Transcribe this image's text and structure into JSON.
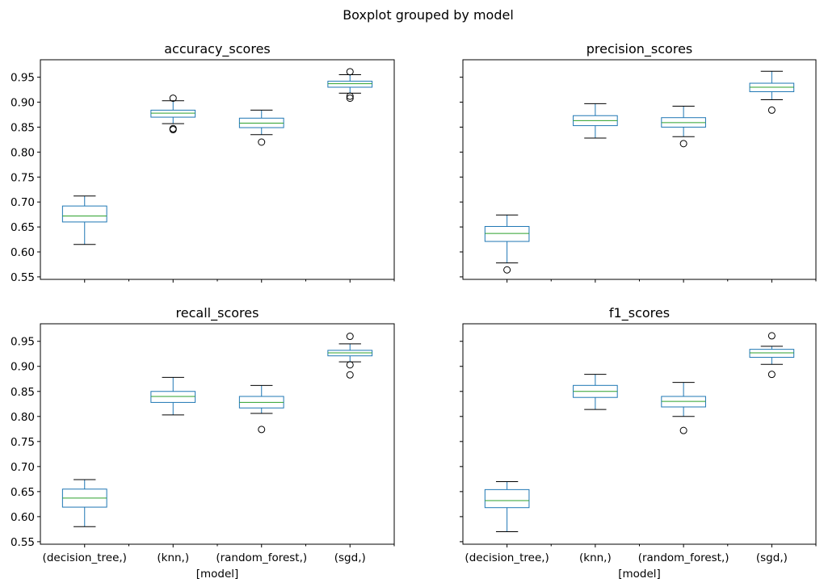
{
  "suptitle": "Boxplot grouped by model",
  "xlabel": "[model]",
  "categories": [
    "(decision_tree,)",
    "(knn,)",
    "(random_forest,)",
    "(sgd,)"
  ],
  "ylim": [
    0.545,
    0.985
  ],
  "yticks": [
    0.55,
    0.6,
    0.65,
    0.7,
    0.75,
    0.8,
    0.85,
    0.9,
    0.95
  ],
  "ytick_labels": [
    "0.55",
    "0.60",
    "0.65",
    "0.70",
    "0.75",
    "0.80",
    "0.85",
    "0.90",
    "0.95"
  ],
  "colors": {
    "box": "#1f77b4",
    "median": "#2ca02c",
    "whisker": "#1f77b4",
    "cap": "#000000",
    "flier": "#000000"
  },
  "chart_data": [
    {
      "type": "boxplot",
      "title": "accuracy_scores",
      "boxes": [
        {
          "category": "(decision_tree,)",
          "whislo": 0.615,
          "q1": 0.66,
          "med": 0.672,
          "q3": 0.692,
          "whishi": 0.712,
          "fliers": []
        },
        {
          "category": "(knn,)",
          "whislo": 0.857,
          "q1": 0.87,
          "med": 0.878,
          "q3": 0.884,
          "whishi": 0.903,
          "fliers": [
            0.847,
            0.845,
            0.908
          ]
        },
        {
          "category": "(random_forest,)",
          "whislo": 0.835,
          "q1": 0.849,
          "med": 0.858,
          "q3": 0.868,
          "whishi": 0.884,
          "fliers": [
            0.82
          ]
        },
        {
          "category": "(sgd,)",
          "whislo": 0.918,
          "q1": 0.93,
          "med": 0.937,
          "q3": 0.942,
          "whishi": 0.955,
          "fliers": [
            0.961,
            0.912,
            0.908
          ]
        }
      ]
    },
    {
      "type": "boxplot",
      "title": "precision_scores",
      "boxes": [
        {
          "category": "(decision_tree,)",
          "whislo": 0.578,
          "q1": 0.621,
          "med": 0.637,
          "q3": 0.651,
          "whishi": 0.674,
          "fliers": [
            0.564
          ]
        },
        {
          "category": "(knn,)",
          "whislo": 0.828,
          "q1": 0.853,
          "med": 0.863,
          "q3": 0.873,
          "whishi": 0.897,
          "fliers": []
        },
        {
          "category": "(random_forest,)",
          "whislo": 0.831,
          "q1": 0.85,
          "med": 0.859,
          "q3": 0.869,
          "whishi": 0.892,
          "fliers": [
            0.817
          ]
        },
        {
          "category": "(sgd,)",
          "whislo": 0.905,
          "q1": 0.921,
          "med": 0.93,
          "q3": 0.938,
          "whishi": 0.962,
          "fliers": [
            0.884
          ]
        }
      ]
    },
    {
      "type": "boxplot",
      "title": "recall_scores",
      "boxes": [
        {
          "category": "(decision_tree,)",
          "whislo": 0.58,
          "q1": 0.619,
          "med": 0.637,
          "q3": 0.655,
          "whishi": 0.674,
          "fliers": []
        },
        {
          "category": "(knn,)",
          "whislo": 0.803,
          "q1": 0.828,
          "med": 0.84,
          "q3": 0.85,
          "whishi": 0.878,
          "fliers": []
        },
        {
          "category": "(random_forest,)",
          "whislo": 0.806,
          "q1": 0.817,
          "med": 0.828,
          "q3": 0.84,
          "whishi": 0.862,
          "fliers": [
            0.774
          ]
        },
        {
          "category": "(sgd,)",
          "whislo": 0.909,
          "q1": 0.921,
          "med": 0.927,
          "q3": 0.932,
          "whishi": 0.945,
          "fliers": [
            0.96,
            0.903,
            0.883
          ]
        }
      ]
    },
    {
      "type": "boxplot",
      "title": "f1_scores",
      "boxes": [
        {
          "category": "(decision_tree,)",
          "whislo": 0.57,
          "q1": 0.618,
          "med": 0.632,
          "q3": 0.654,
          "whishi": 0.67,
          "fliers": []
        },
        {
          "category": "(knn,)",
          "whislo": 0.814,
          "q1": 0.838,
          "med": 0.85,
          "q3": 0.862,
          "whishi": 0.884,
          "fliers": []
        },
        {
          "category": "(random_forest,)",
          "whislo": 0.8,
          "q1": 0.819,
          "med": 0.83,
          "q3": 0.84,
          "whishi": 0.868,
          "fliers": [
            0.772
          ]
        },
        {
          "category": "(sgd,)",
          "whislo": 0.904,
          "q1": 0.918,
          "med": 0.927,
          "q3": 0.934,
          "whishi": 0.94,
          "fliers": [
            0.961,
            0.884
          ]
        }
      ]
    }
  ]
}
